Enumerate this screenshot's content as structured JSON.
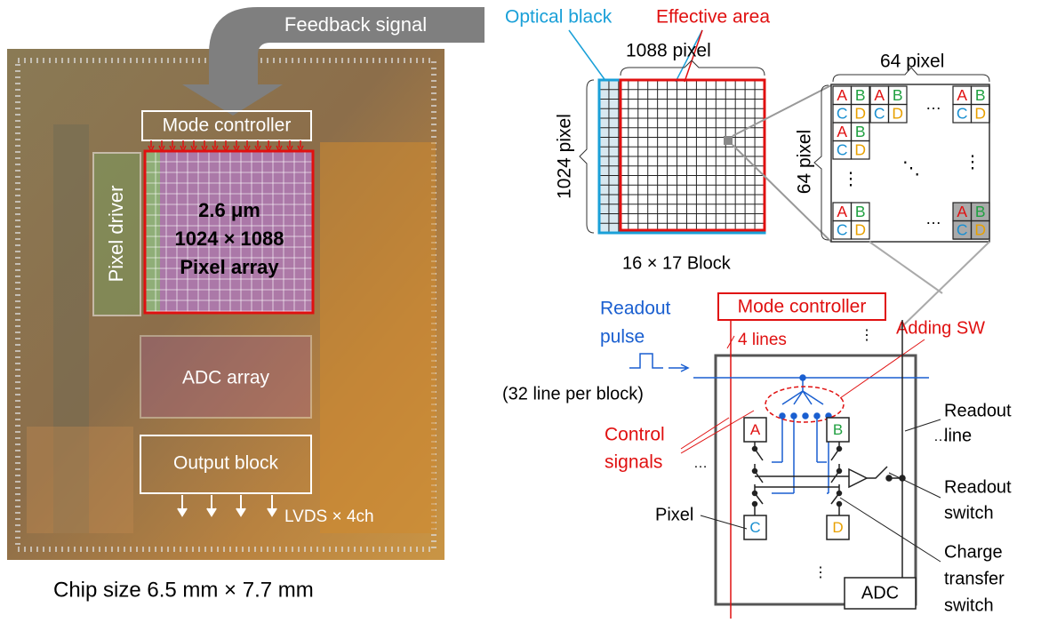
{
  "chip": {
    "feedback": "Feedback signal",
    "mode_controller": "Mode controller",
    "pixel_driver": "Pixel driver",
    "pixel_array": [
      "2.6 μm",
      "1024 × 1088",
      "Pixel array"
    ],
    "adc_array": "ADC array",
    "output_block": "Output block",
    "lvds": "LVDS × 4ch",
    "caption": "Chip size 6.5 mm × 7.7 mm"
  },
  "array": {
    "optical_black": "Optical black",
    "effective_area": "Effective area",
    "width": "1088 pixel",
    "height": "1024 pixel",
    "blocks": "16 × 17 Block"
  },
  "block": {
    "width": "64 pixel",
    "height": "64 pixel",
    "subpixels": [
      "A",
      "B",
      "C",
      "D"
    ],
    "dots": {
      "horizontal": "…",
      "vertical": "⋮",
      "diagonal": "⋱"
    }
  },
  "circuit": {
    "mode_controller": "Mode controller",
    "readout_pulse": [
      "Readout",
      "pulse"
    ],
    "lines": "4 lines",
    "adding_sw": "Adding SW",
    "line_per_block": "(32 line per block)",
    "control_signals": [
      "Control",
      "signals"
    ],
    "readout_line": [
      "Readout",
      "line"
    ],
    "readout_switch": [
      "Readout",
      "switch"
    ],
    "pixel": "Pixel",
    "charge_transfer_switch": [
      "Charge",
      "transfer",
      "switch"
    ],
    "adc": "ADC"
  }
}
